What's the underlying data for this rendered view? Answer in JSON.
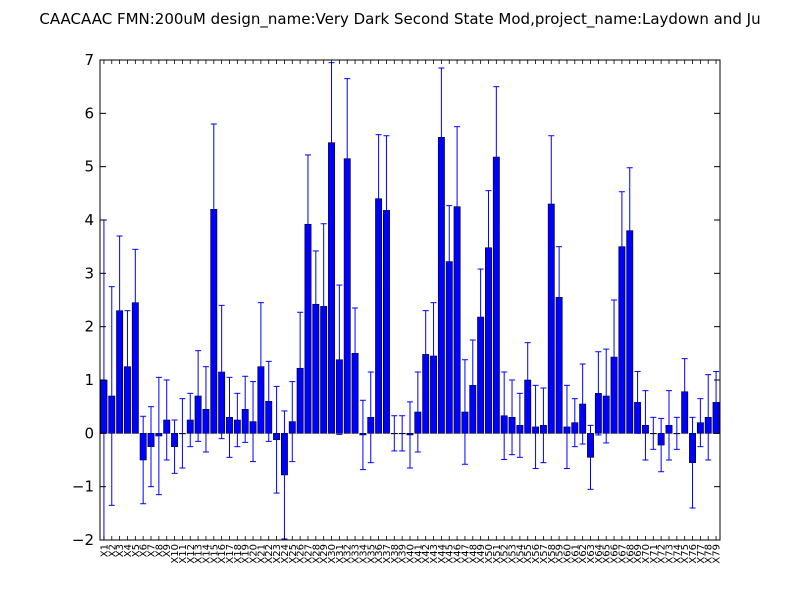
{
  "chart_data": {
    "type": "bar",
    "title": "CAACAAC  FMN:200uM  design_name:Very Dark Second State Mod,project_name:Laydown and Ju",
    "xlabel": "",
    "ylabel": "",
    "ylim": [
      -2,
      7
    ],
    "yticks": [
      -2,
      -1,
      0,
      1,
      2,
      3,
      4,
      5,
      6,
      7
    ],
    "ytick_labels": [
      "−2",
      "−1",
      "0",
      "1",
      "2",
      "3",
      "4",
      "5",
      "6",
      "7"
    ],
    "grid": false,
    "legend": "none",
    "bar_color": "#0000ff",
    "error_color": "#0000ff",
    "categories": [
      "X1",
      "X2",
      "X3",
      "X4",
      "X5",
      "X6",
      "X7",
      "X8",
      "X9",
      "X10",
      "X11",
      "X12",
      "X13",
      "X14",
      "X15",
      "X16",
      "X17",
      "X18",
      "X19",
      "X20",
      "X21",
      "X22",
      "X23",
      "X24",
      "X25",
      "X26",
      "X27",
      "X28",
      "X29",
      "X30",
      "X31",
      "X32",
      "X33",
      "X34",
      "X35",
      "X36",
      "X37",
      "X38",
      "X39",
      "X40",
      "X41",
      "X42",
      "X43",
      "X44",
      "X45",
      "X46",
      "X47",
      "X48",
      "X49",
      "X50",
      "X51",
      "X52",
      "X53",
      "X54",
      "X55",
      "X56",
      "X57",
      "X58",
      "X59",
      "X60",
      "X61",
      "X62",
      "X63",
      "X64",
      "X65",
      "X66",
      "X67",
      "X68",
      "X69",
      "X70",
      "X71",
      "X72",
      "X73",
      "X74",
      "X75",
      "X76",
      "X77",
      "X78",
      "X79"
    ],
    "values": [
      1.0,
      0.7,
      2.3,
      1.25,
      2.45,
      -0.5,
      -0.25,
      -0.05,
      0.25,
      -0.25,
      0.0,
      0.25,
      0.7,
      0.45,
      4.2,
      1.15,
      0.3,
      0.25,
      0.45,
      0.22,
      1.25,
      0.6,
      -0.12,
      -0.78,
      0.22,
      1.22,
      3.92,
      2.42,
      2.38,
      5.45,
      1.38,
      5.15,
      1.5,
      -0.03,
      0.3,
      4.4,
      4.18,
      0.0,
      0.0,
      -0.03,
      0.4,
      1.48,
      1.45,
      5.55,
      3.22,
      4.25,
      0.4,
      0.9,
      2.18,
      3.48,
      5.18,
      0.33,
      0.3,
      0.15,
      1.0,
      0.12,
      0.15,
      4.3,
      2.55,
      0.12,
      0.2,
      0.55,
      -0.45,
      0.75,
      0.7,
      1.43,
      3.5,
      3.8,
      0.58,
      0.15,
      0.0,
      -0.22,
      0.15,
      0.0,
      0.78,
      -0.55,
      0.2,
      0.3,
      0.58
    ],
    "errors": [
      3.0,
      2.05,
      1.4,
      1.05,
      1.0,
      0.82,
      0.75,
      1.1,
      0.75,
      0.5,
      0.65,
      0.5,
      0.85,
      0.8,
      1.6,
      1.25,
      0.75,
      0.5,
      0.62,
      0.75,
      1.2,
      0.75,
      1.0,
      1.2,
      0.75,
      1.05,
      1.3,
      1.0,
      1.55,
      1.5,
      1.4,
      1.5,
      0.85,
      0.65,
      0.85,
      1.2,
      1.4,
      0.33,
      0.33,
      0.62,
      0.75,
      0.82,
      1.0,
      1.3,
      1.05,
      1.5,
      0.98,
      0.85,
      0.9,
      1.07,
      1.32,
      0.82,
      0.7,
      0.6,
      0.7,
      0.78,
      0.7,
      1.28,
      0.95,
      0.78,
      0.45,
      0.75,
      0.6,
      0.78,
      0.88,
      1.07,
      1.03,
      1.18,
      0.58,
      0.65,
      0.3,
      0.5,
      0.65,
      0.3,
      0.62,
      0.85,
      0.45,
      0.8,
      0.58
    ]
  }
}
